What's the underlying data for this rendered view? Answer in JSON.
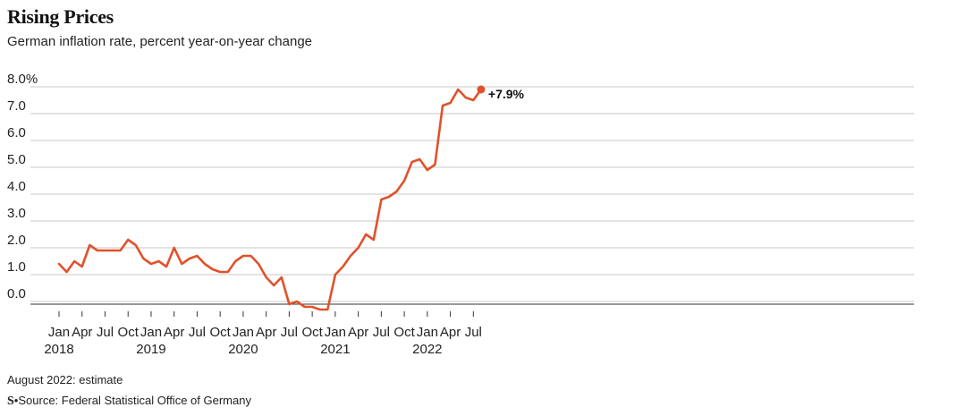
{
  "header": {
    "title": "Rising Prices",
    "subtitle": "German inflation rate, percent year-on-year change"
  },
  "footer": {
    "note": "August 2022: estimate",
    "logo": "S",
    "source": "Source: Federal Statistical Office of Germany"
  },
  "colors": {
    "line": "#e0522b",
    "grid": "#c8c8c8",
    "axis": "#333333",
    "text": "#222222"
  },
  "chart_data": {
    "type": "line",
    "title": "Rising Prices",
    "subtitle": "German inflation rate, percent year-on-year change",
    "ylim": [
      0,
      8
    ],
    "y_ticks": [
      0,
      1,
      2,
      3,
      4,
      5,
      6,
      7,
      8
    ],
    "y_tick_labels": [
      "0.0",
      "1.0",
      "2.0",
      "3.0",
      "4.0",
      "5.0",
      "6.0",
      "7.0",
      "8.0%"
    ],
    "x_tick_labels": [
      {
        "month": "Jan",
        "year": "2018",
        "date": "2018-01"
      },
      {
        "month": "Apr",
        "year": "",
        "date": "2018-04"
      },
      {
        "month": "Jul",
        "year": "",
        "date": "2018-07"
      },
      {
        "month": "Oct",
        "year": "",
        "date": "2018-10"
      },
      {
        "month": "Jan",
        "year": "2019",
        "date": "2019-01"
      },
      {
        "month": "Apr",
        "year": "",
        "date": "2019-04"
      },
      {
        "month": "Jul",
        "year": "",
        "date": "2019-07"
      },
      {
        "month": "Oct",
        "year": "",
        "date": "2019-10"
      },
      {
        "month": "Jan",
        "year": "2020",
        "date": "2020-01"
      },
      {
        "month": "Apr",
        "year": "",
        "date": "2020-04"
      },
      {
        "month": "Jul",
        "year": "",
        "date": "2020-07"
      },
      {
        "month": "Oct",
        "year": "",
        "date": "2020-10"
      },
      {
        "month": "Jan",
        "year": "2021",
        "date": "2021-01"
      },
      {
        "month": "Apr",
        "year": "",
        "date": "2021-04"
      },
      {
        "month": "Jul",
        "year": "",
        "date": "2021-07"
      },
      {
        "month": "Oct",
        "year": "",
        "date": "2021-10"
      },
      {
        "month": "Jan",
        "year": "2022",
        "date": "2022-01"
      },
      {
        "month": "Apr",
        "year": "",
        "date": "2022-04"
      },
      {
        "month": "Jul",
        "year": "",
        "date": "2022-07"
      }
    ],
    "grid": true,
    "series": [
      {
        "x": [
          "2018-01",
          "2018-02",
          "2018-03",
          "2018-04",
          "2018-05",
          "2018-06",
          "2018-07",
          "2018-08",
          "2018-09",
          "2018-10",
          "2018-11",
          "2018-12",
          "2019-01",
          "2019-02",
          "2019-03",
          "2019-04",
          "2019-05",
          "2019-06",
          "2019-07",
          "2019-08",
          "2019-09",
          "2019-10",
          "2019-11",
          "2019-12",
          "2020-01",
          "2020-02",
          "2020-03",
          "2020-04",
          "2020-05",
          "2020-06",
          "2020-07",
          "2020-08",
          "2020-09",
          "2020-10",
          "2020-11",
          "2020-12",
          "2021-01",
          "2021-02",
          "2021-03",
          "2021-04",
          "2021-05",
          "2021-06",
          "2021-07",
          "2021-08",
          "2021-09",
          "2021-10",
          "2021-11",
          "2021-12",
          "2022-01",
          "2022-02",
          "2022-03",
          "2022-04",
          "2022-05",
          "2022-06",
          "2022-07",
          "2022-08"
        ],
        "values": [
          1.4,
          1.1,
          1.5,
          1.3,
          2.1,
          1.9,
          1.9,
          1.9,
          1.9,
          2.3,
          2.1,
          1.6,
          1.4,
          1.5,
          1.3,
          2.0,
          1.4,
          1.6,
          1.7,
          1.4,
          1.2,
          1.1,
          1.1,
          1.5,
          1.7,
          1.7,
          1.4,
          0.9,
          0.6,
          0.9,
          -0.1,
          0.0,
          -0.2,
          -0.2,
          -0.3,
          -0.3,
          1.0,
          1.3,
          1.7,
          2.0,
          2.5,
          2.3,
          3.8,
          3.9,
          4.1,
          4.5,
          5.2,
          5.3,
          4.9,
          5.1,
          7.3,
          7.4,
          7.9,
          7.6,
          7.5,
          7.9
        ]
      }
    ],
    "annotations": [
      {
        "date": "2022-08",
        "value": 7.9,
        "label": "+7.9%"
      }
    ]
  }
}
